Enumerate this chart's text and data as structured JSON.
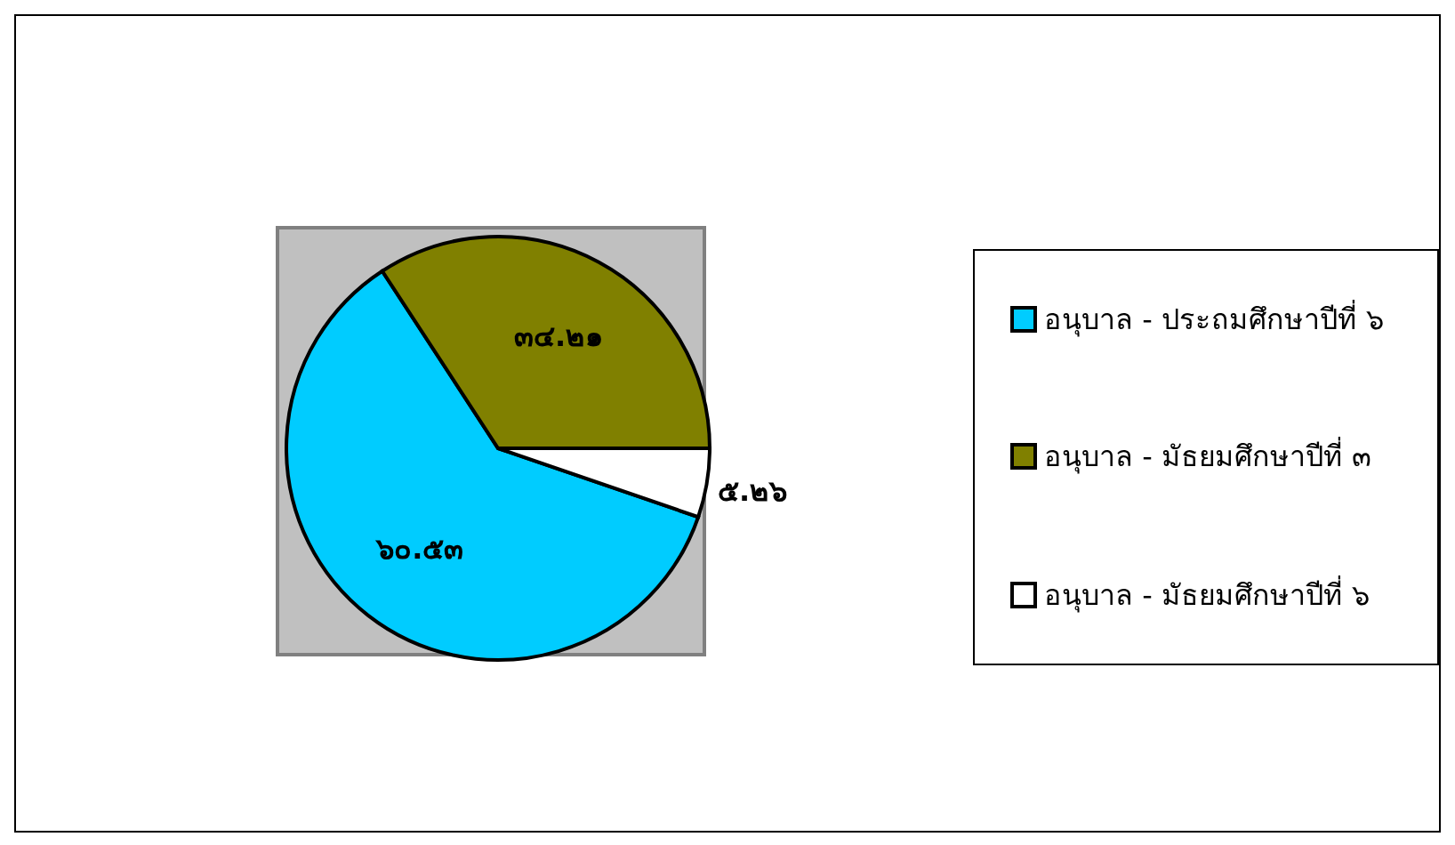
{
  "chart_data": {
    "type": "pie",
    "categories": [
      "อนุบาล - ประถมศึกษาปีที่ ๖",
      "อนุบาล - มัธยมศึกษาปีที่ ๓",
      "อนุบาล - มัธยมศึกษาปีที่ ๖"
    ],
    "values": [
      60.53,
      34.21,
      5.26
    ],
    "colors": [
      "#00ccff",
      "#808000",
      "#ffffff"
    ],
    "value_labels": [
      "๖๐.๕๓",
      "๓๔.๒๑",
      "๕.๒๖"
    ],
    "legend": "right"
  }
}
